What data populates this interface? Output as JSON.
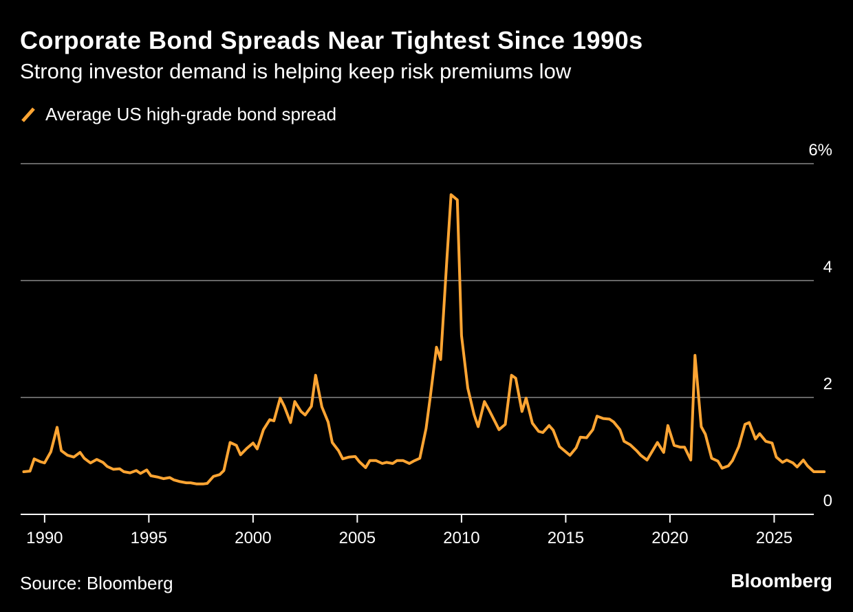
{
  "title": "Corporate Bond Spreads Near Tightest Since 1990s",
  "subtitle": "Strong investor demand is helping keep risk premiums low",
  "source": "Source: Bloomberg",
  "brand": "Bloomberg",
  "colors": {
    "background": "#000000",
    "line": "#ffa533",
    "grid": "#666666",
    "text": "#ffffff"
  },
  "chart_data": {
    "type": "line",
    "title": "Corporate Bond Spreads Near Tightest Since 1990s",
    "subtitle": "Strong investor demand is helping keep risk premiums low",
    "xlabel": "",
    "ylabel": "",
    "xlim": [
      1988.85,
      2026.9
    ],
    "ylim": [
      0,
      6
    ],
    "y_ticks": [
      {
        "value": 6,
        "label": "6%"
      },
      {
        "value": 4,
        "label": "4"
      },
      {
        "value": 2,
        "label": "2"
      },
      {
        "value": 0,
        "label": "0"
      }
    ],
    "x_ticks": [
      {
        "value": 1990,
        "label": "1990"
      },
      {
        "value": 1995,
        "label": "1995"
      },
      {
        "value": 2000,
        "label": "2000"
      },
      {
        "value": 2005,
        "label": "2005"
      },
      {
        "value": 2010,
        "label": "2010"
      },
      {
        "value": 2015,
        "label": "2015"
      },
      {
        "value": 2020,
        "label": "2020"
      },
      {
        "value": 2025,
        "label": "2025"
      }
    ],
    "grid": "horizontal",
    "legend": "top-left",
    "series": [
      {
        "name": "Average US high-grade bond spread",
        "color": "#ffa533",
        "points": [
          [
            1989.0,
            0.73
          ],
          [
            1989.3,
            0.74
          ],
          [
            1989.5,
            0.95
          ],
          [
            1989.8,
            0.9
          ],
          [
            1990.0,
            0.88
          ],
          [
            1990.3,
            1.07
          ],
          [
            1990.6,
            1.49
          ],
          [
            1990.8,
            1.09
          ],
          [
            1991.1,
            1.01
          ],
          [
            1991.4,
            0.98
          ],
          [
            1991.7,
            1.06
          ],
          [
            1991.9,
            0.96
          ],
          [
            1992.2,
            0.88
          ],
          [
            1992.5,
            0.94
          ],
          [
            1992.8,
            0.89
          ],
          [
            1993.0,
            0.82
          ],
          [
            1993.3,
            0.77
          ],
          [
            1993.6,
            0.78
          ],
          [
            1993.8,
            0.73
          ],
          [
            1994.1,
            0.71
          ],
          [
            1994.4,
            0.75
          ],
          [
            1994.6,
            0.7
          ],
          [
            1994.9,
            0.76
          ],
          [
            1995.1,
            0.66
          ],
          [
            1995.4,
            0.64
          ],
          [
            1995.7,
            0.61
          ],
          [
            1996.0,
            0.63
          ],
          [
            1996.2,
            0.59
          ],
          [
            1996.5,
            0.56
          ],
          [
            1996.8,
            0.54
          ],
          [
            1997.0,
            0.54
          ],
          [
            1997.3,
            0.52
          ],
          [
            1997.6,
            0.52
          ],
          [
            1997.8,
            0.53
          ],
          [
            1998.1,
            0.65
          ],
          [
            1998.4,
            0.68
          ],
          [
            1998.6,
            0.75
          ],
          [
            1998.9,
            1.23
          ],
          [
            1999.2,
            1.18
          ],
          [
            1999.4,
            1.02
          ],
          [
            1999.7,
            1.13
          ],
          [
            2000.0,
            1.22
          ],
          [
            2000.2,
            1.12
          ],
          [
            2000.5,
            1.45
          ],
          [
            2000.8,
            1.62
          ],
          [
            2001.0,
            1.6
          ],
          [
            2001.3,
            1.99
          ],
          [
            2001.5,
            1.85
          ],
          [
            2001.8,
            1.57
          ],
          [
            2002.0,
            1.93
          ],
          [
            2002.3,
            1.76
          ],
          [
            2002.5,
            1.7
          ],
          [
            2002.8,
            1.85
          ],
          [
            2003.0,
            2.38
          ],
          [
            2003.3,
            1.84
          ],
          [
            2003.6,
            1.58
          ],
          [
            2003.8,
            1.23
          ],
          [
            2004.1,
            1.09
          ],
          [
            2004.3,
            0.95
          ],
          [
            2004.6,
            0.98
          ],
          [
            2004.9,
            0.99
          ],
          [
            2005.1,
            0.9
          ],
          [
            2005.4,
            0.8
          ],
          [
            2005.6,
            0.92
          ],
          [
            2005.9,
            0.92
          ],
          [
            2006.2,
            0.87
          ],
          [
            2006.4,
            0.89
          ],
          [
            2006.7,
            0.87
          ],
          [
            2006.9,
            0.92
          ],
          [
            2007.2,
            0.92
          ],
          [
            2007.5,
            0.87
          ],
          [
            2007.7,
            0.91
          ],
          [
            2008.0,
            0.96
          ],
          [
            2008.3,
            1.47
          ],
          [
            2008.5,
            2.0
          ],
          [
            2008.8,
            2.86
          ],
          [
            2009.0,
            2.65
          ],
          [
            2009.3,
            4.38
          ],
          [
            2009.5,
            5.47
          ],
          [
            2009.8,
            5.38
          ],
          [
            2010.0,
            3.06
          ],
          [
            2010.3,
            2.16
          ],
          [
            2010.6,
            1.71
          ],
          [
            2010.8,
            1.5
          ],
          [
            2011.1,
            1.93
          ],
          [
            2011.3,
            1.8
          ],
          [
            2011.6,
            1.59
          ],
          [
            2011.8,
            1.45
          ],
          [
            2012.1,
            1.54
          ],
          [
            2012.4,
            2.38
          ],
          [
            2012.6,
            2.33
          ],
          [
            2012.9,
            1.76
          ],
          [
            2013.1,
            1.99
          ],
          [
            2013.4,
            1.56
          ],
          [
            2013.7,
            1.42
          ],
          [
            2013.9,
            1.4
          ],
          [
            2014.2,
            1.52
          ],
          [
            2014.4,
            1.44
          ],
          [
            2014.7,
            1.16
          ],
          [
            2015.0,
            1.07
          ],
          [
            2015.2,
            1.01
          ],
          [
            2015.5,
            1.14
          ],
          [
            2015.7,
            1.32
          ],
          [
            2016.0,
            1.31
          ],
          [
            2016.3,
            1.45
          ],
          [
            2016.5,
            1.68
          ],
          [
            2016.8,
            1.64
          ],
          [
            2017.1,
            1.63
          ],
          [
            2017.3,
            1.58
          ],
          [
            2017.6,
            1.45
          ],
          [
            2017.8,
            1.25
          ],
          [
            2018.1,
            1.19
          ],
          [
            2018.4,
            1.09
          ],
          [
            2018.6,
            1.01
          ],
          [
            2018.9,
            0.93
          ],
          [
            2019.2,
            1.11
          ],
          [
            2019.4,
            1.23
          ],
          [
            2019.7,
            1.06
          ],
          [
            2019.9,
            1.52
          ],
          [
            2020.2,
            1.18
          ],
          [
            2020.5,
            1.15
          ],
          [
            2020.7,
            1.15
          ],
          [
            2021.0,
            0.93
          ],
          [
            2021.2,
            2.72
          ],
          [
            2021.5,
            1.5
          ],
          [
            2021.7,
            1.37
          ],
          [
            2022.0,
            0.96
          ],
          [
            2022.3,
            0.91
          ],
          [
            2022.5,
            0.79
          ],
          [
            2022.8,
            0.83
          ],
          [
            2023.0,
            0.92
          ],
          [
            2023.3,
            1.16
          ],
          [
            2023.6,
            1.54
          ],
          [
            2023.8,
            1.57
          ],
          [
            2024.1,
            1.29
          ],
          [
            2024.3,
            1.38
          ],
          [
            2024.6,
            1.25
          ],
          [
            2024.9,
            1.22
          ],
          [
            2025.1,
            0.98
          ],
          [
            2025.4,
            0.89
          ],
          [
            2025.6,
            0.93
          ],
          [
            2025.9,
            0.88
          ],
          [
            2026.1,
            0.81
          ],
          [
            2026.4,
            0.93
          ],
          [
            2026.6,
            0.83
          ],
          [
            2026.9,
            0.73
          ],
          [
            2027.2,
            0.73
          ],
          [
            2027.4,
            0.73
          ]
        ]
      }
    ]
  }
}
